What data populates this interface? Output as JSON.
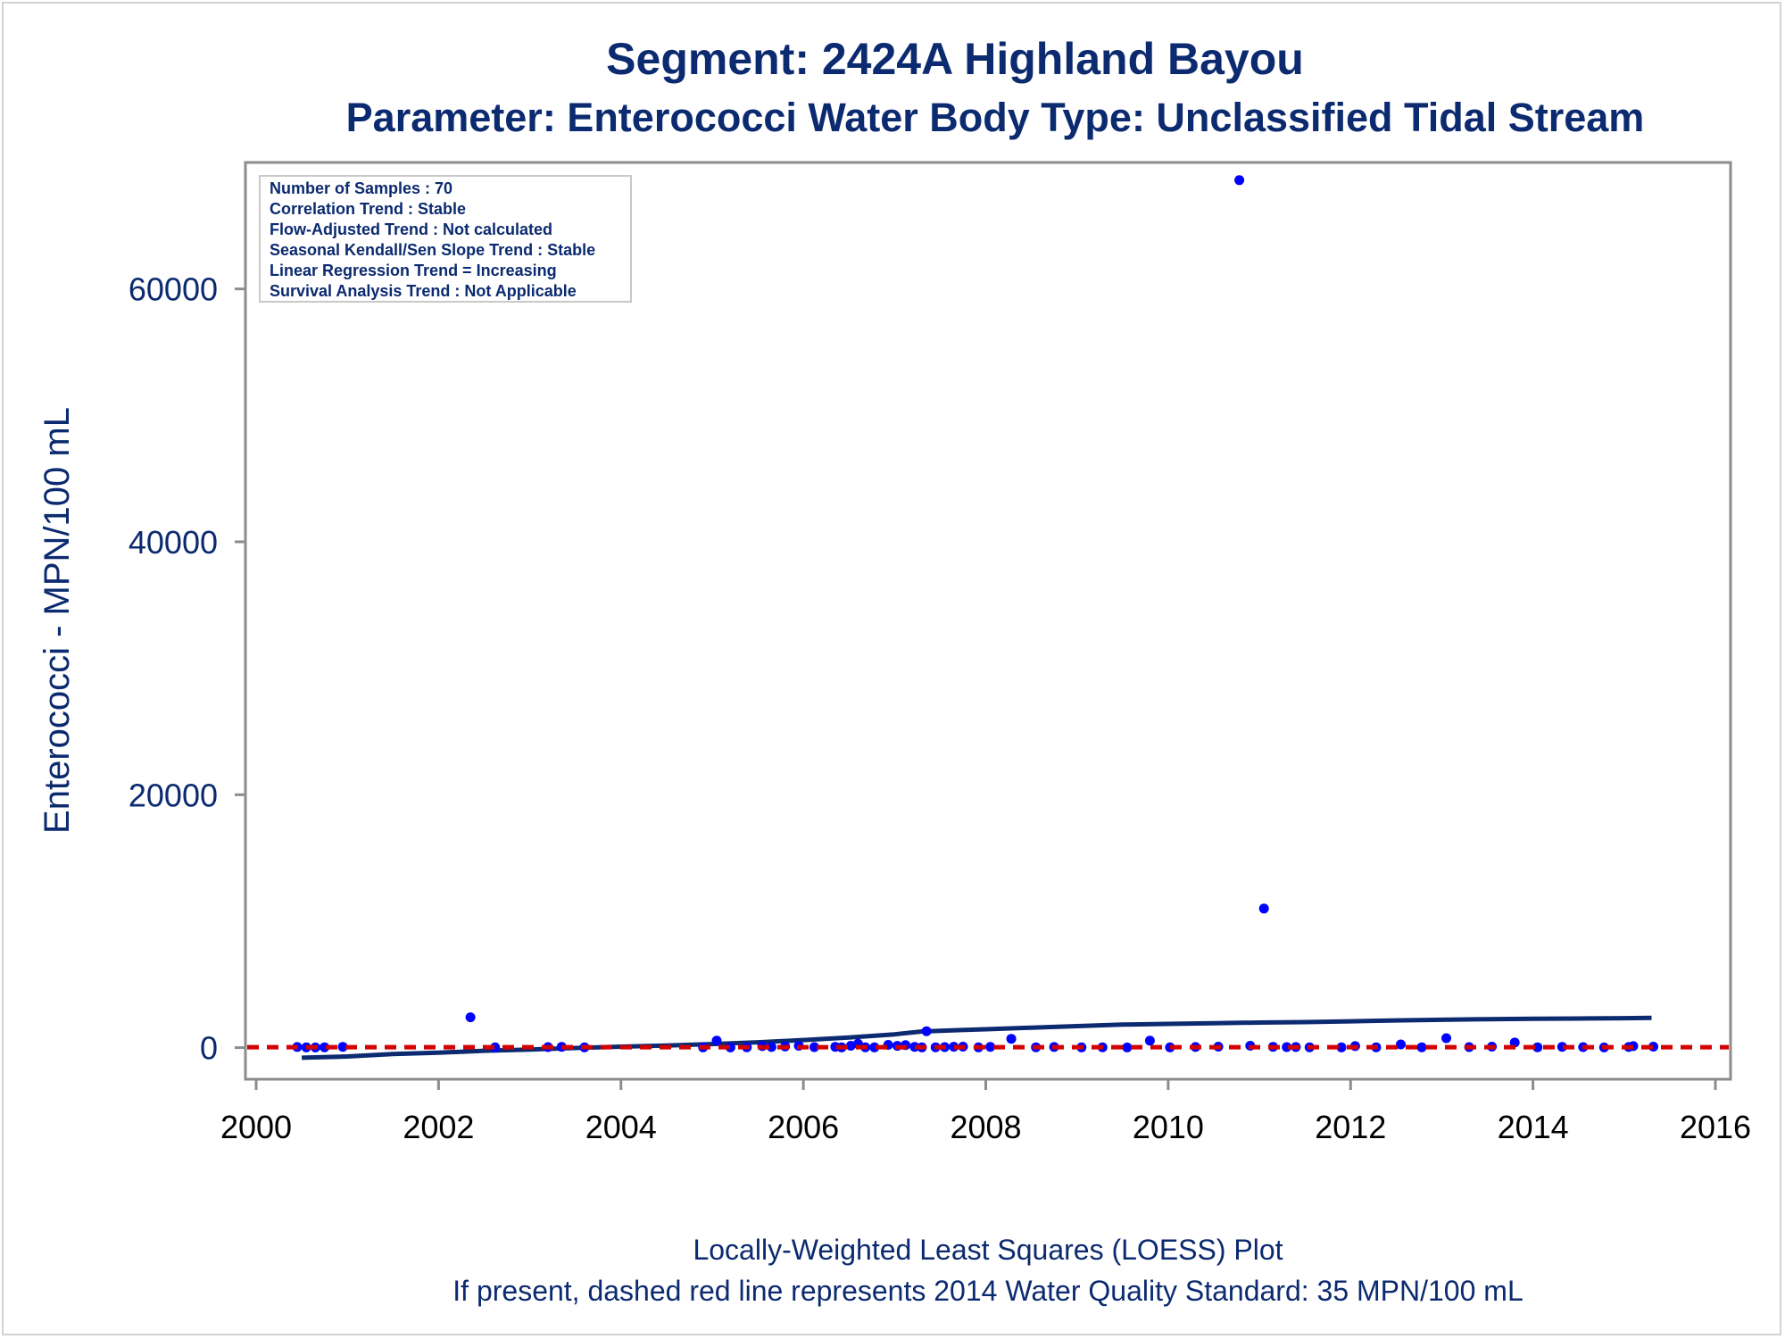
{
  "chart_data": {
    "type": "scatter",
    "title": "Segment: 2424A  Highland Bayou",
    "subtitle": "Parameter: Enterococci   Water Body Type: Unclassified Tidal Stream",
    "ylabel": "Enterococci - MPN/100 mL",
    "footnotes": [
      "Locally-Weighted Least Squares (LOESS) Plot",
      "If present, dashed red line represents 2014 Water Quality Standard: 35 MPN/100 mL"
    ],
    "xlim": [
      2000,
      2016
    ],
    "ylim": [
      -2500,
      70000
    ],
    "x_ticks": [
      2000,
      2002,
      2004,
      2006,
      2008,
      2010,
      2012,
      2014,
      2016
    ],
    "y_ticks": [
      0,
      20000,
      40000,
      60000
    ],
    "grid": false,
    "legend_placement": "top-left",
    "stats_box": [
      "Number of Samples : 70",
      "Correlation Trend : Stable",
      "Flow-Adjusted Trend : Not calculated",
      "Seasonal Kendall/Sen Slope Trend : Stable",
      "Linear Regression Trend = Increasing",
      "Survival Analysis Trend : Not Applicable"
    ],
    "standard_line": {
      "y": 35,
      "color": "#d40000"
    },
    "points_color": "#0000ff",
    "loess_color": "#0b2a6f",
    "points": [
      [
        2000.45,
        50
      ],
      [
        2000.55,
        20
      ],
      [
        2000.65,
        10
      ],
      [
        2000.75,
        30
      ],
      [
        2000.95,
        60
      ],
      [
        2002.35,
        2400
      ],
      [
        2002.62,
        20
      ],
      [
        2003.2,
        40
      ],
      [
        2003.35,
        60
      ],
      [
        2003.6,
        20
      ],
      [
        2004.9,
        20
      ],
      [
        2005.05,
        550
      ],
      [
        2005.2,
        10
      ],
      [
        2005.38,
        30
      ],
      [
        2005.55,
        120
      ],
      [
        2005.65,
        50
      ],
      [
        2005.8,
        90
      ],
      [
        2005.95,
        150
      ],
      [
        2006.12,
        40
      ],
      [
        2006.35,
        60
      ],
      [
        2006.42,
        20
      ],
      [
        2006.52,
        150
      ],
      [
        2006.6,
        300
      ],
      [
        2006.68,
        30
      ],
      [
        2006.78,
        20
      ],
      [
        2006.93,
        220
      ],
      [
        2007.03,
        140
      ],
      [
        2007.12,
        200
      ],
      [
        2007.22,
        60
      ],
      [
        2007.3,
        20
      ],
      [
        2007.35,
        1300
      ],
      [
        2007.45,
        30
      ],
      [
        2007.55,
        40
      ],
      [
        2007.65,
        70
      ],
      [
        2007.75,
        80
      ],
      [
        2007.92,
        20
      ],
      [
        2008.05,
        60
      ],
      [
        2008.28,
        700
      ],
      [
        2008.55,
        30
      ],
      [
        2008.75,
        50
      ],
      [
        2009.05,
        20
      ],
      [
        2009.28,
        30
      ],
      [
        2009.55,
        10
      ],
      [
        2009.8,
        550
      ],
      [
        2010.02,
        20
      ],
      [
        2010.3,
        50
      ],
      [
        2010.55,
        80
      ],
      [
        2010.78,
        68600
      ],
      [
        2010.9,
        150
      ],
      [
        2011.05,
        11000
      ],
      [
        2011.15,
        60
      ],
      [
        2011.3,
        40
      ],
      [
        2011.4,
        50
      ],
      [
        2011.55,
        30
      ],
      [
        2011.9,
        20
      ],
      [
        2012.05,
        120
      ],
      [
        2012.28,
        30
      ],
      [
        2012.55,
        250
      ],
      [
        2012.78,
        30
      ],
      [
        2013.05,
        750
      ],
      [
        2013.3,
        40
      ],
      [
        2013.55,
        80
      ],
      [
        2013.8,
        400
      ],
      [
        2014.05,
        30
      ],
      [
        2014.32,
        60
      ],
      [
        2014.55,
        40
      ],
      [
        2014.78,
        10
      ],
      [
        2015.05,
        50
      ],
      [
        2015.32,
        80
      ],
      [
        2015.1,
        120
      ]
    ],
    "loess": [
      [
        2000.5,
        -800
      ],
      [
        2001.0,
        -700
      ],
      [
        2001.5,
        -500
      ],
      [
        2002.0,
        -400
      ],
      [
        2002.5,
        -250
      ],
      [
        2003.0,
        -150
      ],
      [
        2003.5,
        -30
      ],
      [
        2004.0,
        80
      ],
      [
        2004.5,
        170
      ],
      [
        2005.0,
        280
      ],
      [
        2005.5,
        420
      ],
      [
        2006.0,
        600
      ],
      [
        2006.5,
        800
      ],
      [
        2007.0,
        1050
      ],
      [
        2007.3,
        1280
      ],
      [
        2007.7,
        1380
      ],
      [
        2008.0,
        1450
      ],
      [
        2008.5,
        1580
      ],
      [
        2009.0,
        1700
      ],
      [
        2009.5,
        1820
      ],
      [
        2010.0,
        1880
      ],
      [
        2010.5,
        1930
      ],
      [
        2011.0,
        1980
      ],
      [
        2011.5,
        2020
      ],
      [
        2012.0,
        2080
      ],
      [
        2012.5,
        2150
      ],
      [
        2013.0,
        2200
      ],
      [
        2013.5,
        2250
      ],
      [
        2014.0,
        2280
      ],
      [
        2014.5,
        2300
      ],
      [
        2015.0,
        2330
      ],
      [
        2015.3,
        2350
      ]
    ]
  }
}
